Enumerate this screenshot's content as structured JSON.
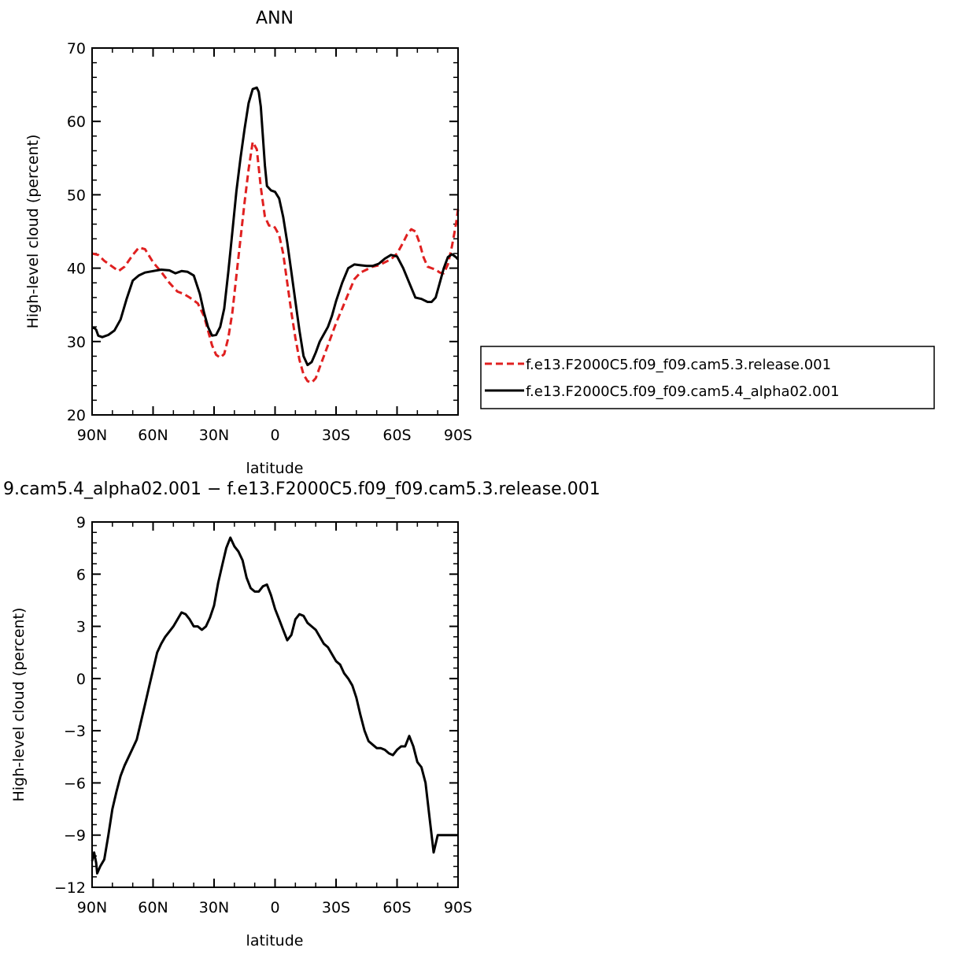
{
  "chart_data": [
    {
      "type": "line",
      "title": "ANN",
      "xlabel": "latitude",
      "ylabel": "High-level cloud (percent)",
      "xlim": [
        90,
        -90
      ],
      "ylim": [
        20,
        70
      ],
      "yticks": [
        20,
        30,
        40,
        50,
        60,
        70
      ],
      "xticks": [
        90,
        60,
        30,
        0,
        -30,
        -60,
        -90
      ],
      "xticklabels": [
        "90N",
        "60N",
        "30N",
        "0",
        "30S",
        "60S",
        "90S"
      ],
      "grid": false,
      "legend_position": "right-outside",
      "series": [
        {
          "name": "f.e13.F2000C5.f09_f09.cam5.3.release.001",
          "color": "#e02020",
          "dash": "dashed",
          "x": [
            90,
            87,
            84,
            80,
            77,
            74,
            70,
            67,
            64,
            60,
            56,
            52,
            48,
            45,
            42,
            38,
            35,
            33,
            31,
            29,
            27,
            25,
            23,
            21,
            19,
            17,
            15,
            13,
            11,
            9,
            7,
            5,
            3,
            1,
            0,
            -2,
            -4,
            -6,
            -8,
            -10,
            -12,
            -14,
            -16,
            -18,
            -20,
            -22,
            -24,
            -26,
            -28,
            -30,
            -33,
            -36,
            -39,
            -42,
            -45,
            -48,
            -51,
            -54,
            -57,
            -60,
            -63,
            -65,
            -67,
            -69,
            -71,
            -73,
            -75,
            -77,
            -79,
            -81,
            -83,
            -85,
            -87,
            -89,
            -90
          ],
          "y": [
            42.0,
            41.8,
            41.0,
            40.2,
            39.6,
            40.2,
            41.8,
            42.8,
            42.6,
            40.8,
            39.5,
            38.0,
            36.8,
            36.5,
            36.0,
            35.2,
            33.5,
            31.5,
            29.5,
            28.2,
            27.8,
            28.3,
            30.5,
            34.0,
            39.0,
            44.0,
            49.0,
            53.5,
            57.2,
            56.2,
            51.0,
            47.0,
            45.8,
            45.8,
            45.5,
            44.5,
            42.0,
            38.0,
            34.0,
            30.5,
            27.5,
            25.5,
            24.6,
            24.4,
            25.0,
            26.5,
            28.0,
            29.5,
            31.0,
            32.5,
            34.5,
            36.5,
            38.5,
            39.4,
            39.8,
            40.2,
            40.4,
            40.8,
            41.2,
            42.0,
            43.5,
            44.6,
            45.3,
            45.0,
            43.5,
            41.5,
            40.2,
            40.0,
            39.8,
            39.4,
            39.3,
            40.5,
            43.0,
            46.0,
            48.0
          ]
        },
        {
          "name": "f.e13.F2000C5.f09_f09.cam5.4_alpha02.001",
          "color": "#000000",
          "dash": "solid",
          "x": [
            90,
            89,
            88,
            87,
            85,
            82,
            79,
            76,
            73,
            70,
            67,
            64,
            60,
            56,
            52,
            49,
            46,
            43,
            40,
            37,
            35,
            33,
            31,
            29,
            27,
            25,
            23,
            21,
            19,
            17,
            15,
            13,
            11,
            9,
            8,
            7,
            6,
            5,
            4,
            2,
            0,
            -2,
            -4,
            -6,
            -8,
            -10,
            -12,
            -14,
            -16,
            -18,
            -20,
            -22,
            -24,
            -26,
            -28,
            -30,
            -33,
            -36,
            -39,
            -42,
            -45,
            -48,
            -51,
            -54,
            -57,
            -60,
            -63,
            -66,
            -69,
            -72,
            -75,
            -77,
            -79,
            -81,
            -83,
            -85,
            -87,
            -89,
            -90
          ],
          "y": [
            31.8,
            31.9,
            31.6,
            30.8,
            30.6,
            30.9,
            31.5,
            33.0,
            35.8,
            38.3,
            39.0,
            39.4,
            39.6,
            39.8,
            39.7,
            39.3,
            39.6,
            39.5,
            39.0,
            36.5,
            34.0,
            32.0,
            30.8,
            30.9,
            32.0,
            34.5,
            39.5,
            45.0,
            50.5,
            55.0,
            59.0,
            62.5,
            64.4,
            64.6,
            64.0,
            62.0,
            58.0,
            54.0,
            51.2,
            50.6,
            50.4,
            49.5,
            47.0,
            43.5,
            39.5,
            35.5,
            31.5,
            28.0,
            26.8,
            27.2,
            28.5,
            30.0,
            31.0,
            32.0,
            33.5,
            35.5,
            38.0,
            40.0,
            40.5,
            40.4,
            40.3,
            40.3,
            40.6,
            41.3,
            41.8,
            41.6,
            40.0,
            38.0,
            36.0,
            35.8,
            35.4,
            35.4,
            36.0,
            38.0,
            40.0,
            41.5,
            41.9,
            41.5,
            41.2
          ]
        }
      ]
    },
    {
      "type": "line",
      "title": "9.cam5.4_alpha02.001 − f.e13.F2000C5.f09_f09.cam5.3.release.001",
      "xlabel": "latitude",
      "ylabel": "High-level cloud (percent)",
      "xlim": [
        90,
        -90
      ],
      "ylim": [
        -12,
        9
      ],
      "yticks": [
        -12,
        -9,
        -6,
        -3,
        0,
        3,
        6,
        9
      ],
      "xticks": [
        90,
        60,
        30,
        0,
        -30,
        -60,
        -90
      ],
      "xticklabels": [
        "90N",
        "60N",
        "30N",
        "0",
        "30S",
        "60S",
        "90S"
      ],
      "grid": false,
      "series": [
        {
          "color": "#000000",
          "dash": "solid",
          "x": [
            90,
            89,
            88,
            87.5,
            86,
            84,
            82,
            80,
            78,
            76,
            74,
            72,
            70,
            68,
            66,
            64,
            62,
            60,
            58,
            56,
            54,
            52,
            50,
            48,
            46,
            44,
            42,
            40,
            38,
            36,
            34,
            32,
            30,
            28,
            26,
            24,
            22,
            20,
            18,
            16,
            14,
            12,
            10,
            8,
            6,
            4,
            2,
            0,
            -2,
            -4,
            -6,
            -8,
            -10,
            -12,
            -14,
            -16,
            -18,
            -20,
            -22,
            -24,
            -26,
            -28,
            -30,
            -32,
            -34,
            -36,
            -38,
            -40,
            -42,
            -44,
            -46,
            -48,
            -50,
            -52,
            -54,
            -56,
            -58,
            -60,
            -62,
            -64,
            -66,
            -68,
            -70,
            -72,
            -74,
            -76,
            -78,
            -80,
            -81,
            -82,
            -84,
            -86,
            -87,
            -88,
            -89,
            -90
          ],
          "y": [
            -10.5,
            -10.0,
            -10.6,
            -11.2,
            -10.8,
            -10.4,
            -9.0,
            -7.5,
            -6.5,
            -5.6,
            -5.0,
            -4.5,
            -4.0,
            -3.5,
            -2.5,
            -1.5,
            -0.5,
            0.5,
            1.5,
            2.0,
            2.4,
            2.7,
            3.0,
            3.4,
            3.8,
            3.7,
            3.4,
            3.0,
            3.0,
            2.8,
            3.0,
            3.5,
            4.2,
            5.5,
            6.5,
            7.5,
            8.1,
            7.6,
            7.3,
            6.8,
            5.8,
            5.2,
            5.0,
            5.0,
            5.3,
            5.4,
            4.8,
            4.0,
            3.4,
            2.8,
            2.2,
            2.5,
            3.4,
            3.7,
            3.6,
            3.2,
            3.0,
            2.8,
            2.4,
            2.0,
            1.8,
            1.4,
            1.0,
            0.8,
            0.3,
            0.0,
            -0.4,
            -1.1,
            -2.1,
            -3.0,
            -3.6,
            -3.8,
            -4.0,
            -4.0,
            -4.1,
            -4.3,
            -4.4,
            -4.1,
            -3.9,
            -3.9,
            -3.3,
            -3.9,
            -4.8,
            -5.1,
            -6.0,
            -8.0,
            -10.0,
            -9.0,
            -9.0,
            -9.0,
            -9.0,
            -9.0,
            -9.0,
            -9.0,
            -9.0,
            -9.0
          ]
        }
      ]
    }
  ]
}
